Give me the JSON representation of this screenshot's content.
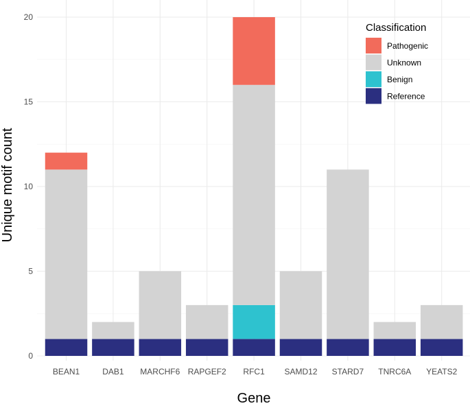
{
  "chart_data": {
    "type": "bar",
    "stacked": true,
    "title": "",
    "xlabel": "Gene",
    "ylabel": "Unique motif count",
    "ylim": [
      0,
      20
    ],
    "yticks": [
      0,
      5,
      10,
      15,
      20
    ],
    "categories": [
      "BEAN1",
      "DAB1",
      "MARCHF6",
      "RAPGEF2",
      "RFC1",
      "SAMD12",
      "STARD7",
      "TNRC6A",
      "YEATS2"
    ],
    "series": [
      {
        "name": "Reference",
        "color": "#2b2f80",
        "values": [
          1,
          1,
          1,
          1,
          1,
          1,
          1,
          1,
          1
        ]
      },
      {
        "name": "Benign",
        "color": "#2ec2cf",
        "values": [
          0,
          0,
          0,
          0,
          2,
          0,
          0,
          0,
          0
        ]
      },
      {
        "name": "Unknown",
        "color": "#d3d3d3",
        "values": [
          10,
          1,
          4,
          2,
          13,
          4,
          10,
          1,
          2
        ]
      },
      {
        "name": "Pathogenic",
        "color": "#f26b5b",
        "values": [
          1,
          0,
          0,
          0,
          4,
          0,
          0,
          0,
          0
        ]
      }
    ],
    "legend": {
      "title": "Classification",
      "position": "top-right",
      "order": [
        "Pathogenic",
        "Unknown",
        "Benign",
        "Reference"
      ]
    },
    "grid": true
  }
}
